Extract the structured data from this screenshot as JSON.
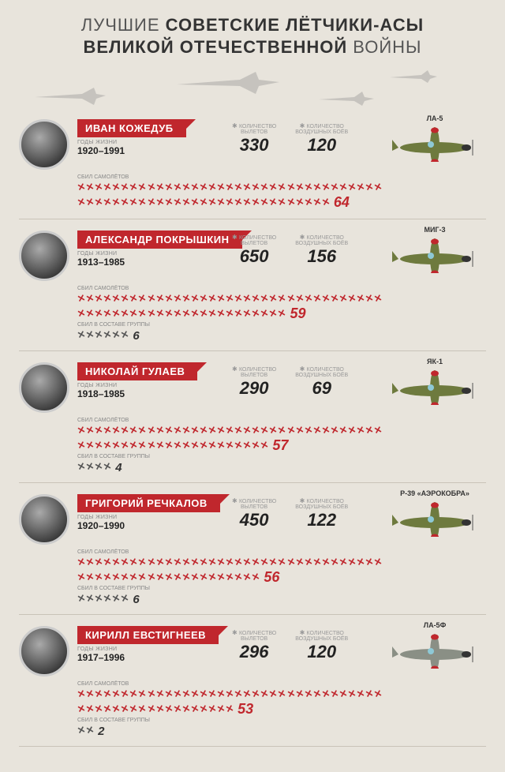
{
  "title_line1_pre": "ЛУЧШИЕ ",
  "title_line1_bold": "СОВЕТСКИЕ ЛЁТЧИКИ-АСЫ",
  "title_line2_bold": "ВЕЛИКОЙ ОТЕЧЕСТВЕННОЙ",
  "title_line2_post": " ВОЙНЫ",
  "labels": {
    "years": "ГОДЫ ЖИЗНИ",
    "sorties": "КОЛИЧЕСТВО ВЫЛЕТОВ",
    "battles": "КОЛИЧЕСТВО ВОЗДУШНЫХ БОЁВ",
    "solo_kills": "СБИЛ САМОЛЁТОВ",
    "group_kills": "СБИЛ В СОСТАВЕ ГРУППЫ"
  },
  "style": {
    "accent": "#c0272d",
    "text": "#222",
    "muted": "#888",
    "divider": "#c9c3b8",
    "bg": "#e8e4dc",
    "kill_icon_color_solo": "#c0272d",
    "kill_icon_color_group": "#555",
    "plane_color_green": "#6e7a3e",
    "plane_color_grey": "#8a8f85",
    "plane_star": "#c0272d"
  },
  "pilots": [
    {
      "name": "ИВАН КОЖЕДУБ",
      "years": "1920–1991",
      "sorties": 330,
      "battles": 120,
      "solo_kills": 64,
      "group_kills": null,
      "aircraft": "ЛА-5",
      "plane_color": "#6e7a3e"
    },
    {
      "name": "АЛЕКСАНДР ПОКРЫШКИН",
      "years": "1913–1985",
      "sorties": 650,
      "battles": 156,
      "solo_kills": 59,
      "group_kills": 6,
      "aircraft": "МИГ-3",
      "plane_color": "#6e7a3e"
    },
    {
      "name": "НИКОЛАЙ ГУЛАЕВ",
      "years": "1918–1985",
      "sorties": 290,
      "battles": 69,
      "solo_kills": 57,
      "group_kills": 4,
      "aircraft": "ЯК-1",
      "plane_color": "#6e7a3e"
    },
    {
      "name": "ГРИГОРИЙ РЕЧКАЛОВ",
      "years": "1920–1990",
      "sorties": 450,
      "battles": 122,
      "solo_kills": 56,
      "group_kills": 6,
      "aircraft": "Р-39 «АЭРОКОБРА»",
      "plane_color": "#6e7a3e"
    },
    {
      "name": "КИРИЛЛ ЕВСТИГНЕЕВ",
      "years": "1917–1996",
      "sorties": 296,
      "battles": 120,
      "solo_kills": 53,
      "group_kills": 2,
      "aircraft": "ЛА-5Ф",
      "plane_color": "#8a8f85"
    }
  ]
}
